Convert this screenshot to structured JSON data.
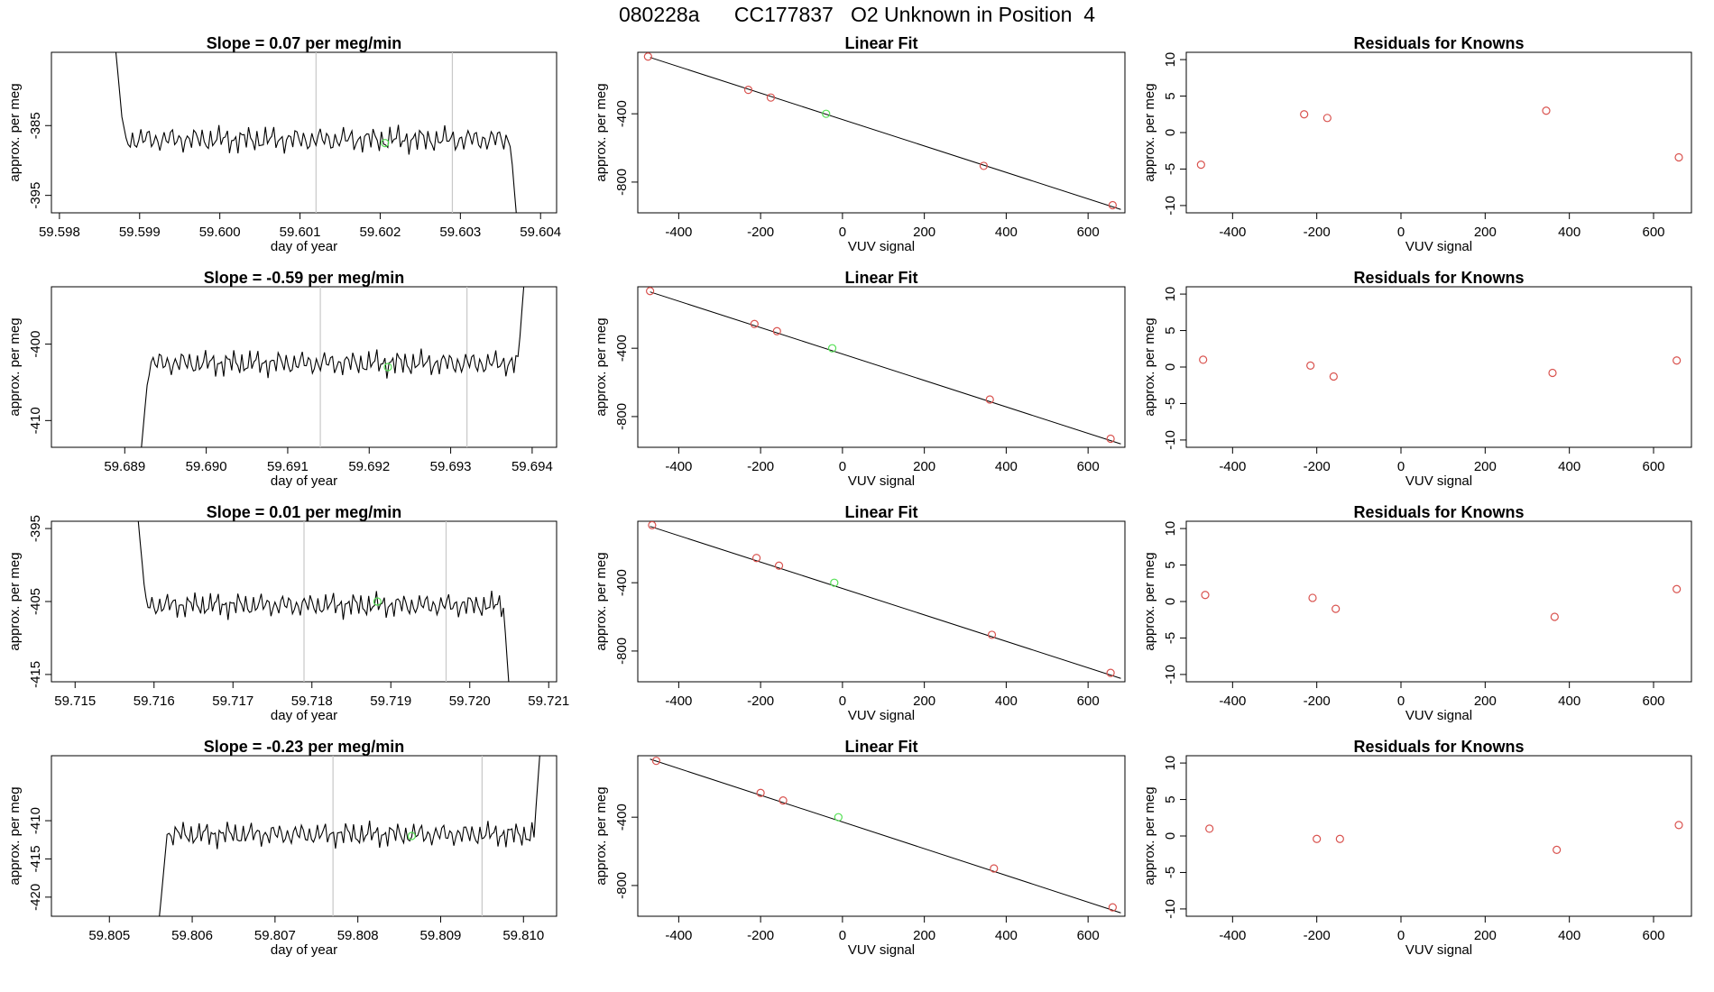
{
  "page": {
    "title": "080228a      CC177837   O2 Unknown in Position  4"
  },
  "colors": {
    "trace": "#000000",
    "known_point": "#d9534f",
    "unknown_point": "#55e055",
    "marker_line": "#c8c8c8",
    "fit_line": "#000000"
  },
  "chart_data": [
    {
      "type": "line",
      "title": "Slope =  0.07  per meg/min",
      "xlabel": "day of year",
      "ylabel": "approx. per meg",
      "xlim": [
        59.5979,
        59.6042
      ],
      "ylim": [
        -397.5,
        -374.5
      ],
      "xticks": [
        59.598,
        59.599,
        59.6,
        59.601,
        59.602,
        59.603,
        59.604
      ],
      "xtick_labels": [
        "59.598",
        "59.599",
        "59.600",
        "59.601",
        "59.602",
        "59.603",
        "59.604"
      ],
      "yticks": [
        -385,
        -395
      ],
      "ytick_labels": [
        "-385",
        "-395"
      ],
      "trace": {
        "x_start": 59.5987,
        "x_end": 59.6037,
        "base": -387.0,
        "amp": 2.0,
        "start_value": -374.0,
        "end_value": -398.0
      },
      "markers_x": [
        59.6012,
        59.6029
      ],
      "unknown_point": {
        "x": 59.60206,
        "y": -387.5
      }
    },
    {
      "type": "scatter",
      "title": "Linear Fit",
      "xlabel": "VUV signal",
      "ylabel": "approx. per meg",
      "xlim": [
        -500,
        690
      ],
      "ylim": [
        -980,
        -40
      ],
      "xticks": [
        -400,
        -200,
        0,
        200,
        400,
        600
      ],
      "xtick_labels": [
        "-400",
        "-200",
        "0",
        "200",
        "400",
        "600"
      ],
      "yticks": [
        -400,
        -800
      ],
      "ytick_labels": [
        "-400",
        "-800"
      ],
      "fit": {
        "x": [
          -470,
          680
        ],
        "y": [
          -70,
          -960
        ]
      },
      "known_points": [
        {
          "x": -475,
          "y": -65
        },
        {
          "x": -230,
          "y": -260
        },
        {
          "x": -175,
          "y": -305
        },
        {
          "x": 345,
          "y": -705
        },
        {
          "x": 660,
          "y": -935
        }
      ],
      "unknown_point": {
        "x": -40,
        "y": -400
      }
    },
    {
      "type": "scatter",
      "title": "Residuals for Knowns",
      "xlabel": "VUV signal",
      "ylabel": "approx. per meg",
      "xlim": [
        -510,
        690
      ],
      "ylim": [
        -11,
        11
      ],
      "xticks": [
        -400,
        -200,
        0,
        200,
        400,
        600
      ],
      "xtick_labels": [
        "-400",
        "-200",
        "0",
        "200",
        "400",
        "600"
      ],
      "yticks": [
        10,
        5,
        0,
        -5,
        -10
      ],
      "ytick_labels": [
        "10",
        "5",
        "0",
        "-5",
        "-10"
      ],
      "known_points": [
        {
          "x": -475,
          "y": -4.4
        },
        {
          "x": -230,
          "y": 2.5
        },
        {
          "x": -175,
          "y": 2.0
        },
        {
          "x": 345,
          "y": 3.0
        },
        {
          "x": 660,
          "y": -3.4
        }
      ]
    },
    {
      "type": "line",
      "title": "Slope =  -0.59  per meg/min",
      "xlabel": "day of year",
      "ylabel": "approx. per meg",
      "xlim": [
        59.6881,
        59.6943
      ],
      "ylim": [
        -413.5,
        -392.5
      ],
      "xticks": [
        59.689,
        59.69,
        59.691,
        59.692,
        59.693,
        59.694
      ],
      "xtick_labels": [
        "59.689",
        "59.690",
        "59.691",
        "59.692",
        "59.693",
        "59.694"
      ],
      "yticks": [
        -400,
        -410
      ],
      "ytick_labels": [
        "-400",
        "-410"
      ],
      "trace": {
        "x_start": 59.6892,
        "x_end": 59.6939,
        "base": -402.5,
        "amp": 1.8,
        "start_value": -414.0,
        "end_value": -392.0
      },
      "markers_x": [
        59.6914,
        59.6932
      ],
      "unknown_point": {
        "x": 59.69223,
        "y": -403.0
      }
    },
    {
      "type": "scatter",
      "title": "Linear Fit",
      "xlabel": "VUV signal",
      "ylabel": "approx. per meg",
      "xlim": [
        -500,
        690
      ],
      "ylim": [
        -980,
        -40
      ],
      "xticks": [
        -400,
        -200,
        0,
        200,
        400,
        600
      ],
      "xtick_labels": [
        "-400",
        "-200",
        "0",
        "200",
        "400",
        "600"
      ],
      "yticks": [
        -400,
        -800
      ],
      "ytick_labels": [
        "-400",
        "-800"
      ],
      "fit": {
        "x": [
          -470,
          680
        ],
        "y": [
          -70,
          -960
        ]
      },
      "known_points": [
        {
          "x": -470,
          "y": -65
        },
        {
          "x": -215,
          "y": -258
        },
        {
          "x": -160,
          "y": -300
        },
        {
          "x": 360,
          "y": -700
        },
        {
          "x": 655,
          "y": -930
        }
      ],
      "unknown_point": {
        "x": -25,
        "y": -400
      }
    },
    {
      "type": "scatter",
      "title": "Residuals for Knowns",
      "xlabel": "VUV signal",
      "ylabel": "approx. per meg",
      "xlim": [
        -510,
        690
      ],
      "ylim": [
        -11,
        11
      ],
      "xticks": [
        -400,
        -200,
        0,
        200,
        400,
        600
      ],
      "xtick_labels": [
        "-400",
        "-200",
        "0",
        "200",
        "400",
        "600"
      ],
      "yticks": [
        10,
        5,
        0,
        -5,
        -10
      ],
      "ytick_labels": [
        "10",
        "5",
        "0",
        "-5",
        "-10"
      ],
      "known_points": [
        {
          "x": -470,
          "y": 1.0
        },
        {
          "x": -215,
          "y": 0.2
        },
        {
          "x": -160,
          "y": -1.3
        },
        {
          "x": 360,
          "y": -0.8
        },
        {
          "x": 655,
          "y": 0.9
        }
      ]
    },
    {
      "type": "line",
      "title": "Slope =  0.01  per meg/min",
      "xlabel": "day of year",
      "ylabel": "approx. per meg",
      "xlim": [
        59.7147,
        59.7211
      ],
      "ylim": [
        -416,
        -394
      ],
      "xticks": [
        59.715,
        59.716,
        59.717,
        59.718,
        59.719,
        59.72,
        59.721
      ],
      "xtick_labels": [
        "59.715",
        "59.716",
        "59.717",
        "59.718",
        "59.719",
        "59.720",
        "59.721"
      ],
      "yticks": [
        -395,
        -405,
        -415
      ],
      "ytick_labels": [
        "-395",
        "-405",
        "-415"
      ],
      "trace": {
        "x_start": 59.7158,
        "x_end": 59.7205,
        "base": -405.5,
        "amp": 1.8,
        "start_value": -394.0,
        "end_value": -417.0
      },
      "markers_x": [
        59.7179,
        59.7197
      ],
      "unknown_point": {
        "x": 59.71883,
        "y": -405.0
      }
    },
    {
      "type": "scatter",
      "title": "Linear Fit",
      "xlabel": "VUV signal",
      "ylabel": "approx. per meg",
      "xlim": [
        -500,
        690
      ],
      "ylim": [
        -980,
        -40
      ],
      "xticks": [
        -400,
        -200,
        0,
        200,
        400,
        600
      ],
      "xtick_labels": [
        "-400",
        "-200",
        "0",
        "200",
        "400",
        "600"
      ],
      "yticks": [
        -400,
        -800
      ],
      "ytick_labels": [
        "-400",
        "-800"
      ],
      "fit": {
        "x": [
          -470,
          680
        ],
        "y": [
          -70,
          -960
        ]
      },
      "known_points": [
        {
          "x": -465,
          "y": -63
        },
        {
          "x": -210,
          "y": -255
        },
        {
          "x": -155,
          "y": -300
        },
        {
          "x": 365,
          "y": -705
        },
        {
          "x": 655,
          "y": -928
        }
      ],
      "unknown_point": {
        "x": -20,
        "y": -400
      }
    },
    {
      "type": "scatter",
      "title": "Residuals for Knowns",
      "xlabel": "VUV signal",
      "ylabel": "approx. per meg",
      "xlim": [
        -510,
        690
      ],
      "ylim": [
        -11,
        11
      ],
      "xticks": [
        -400,
        -200,
        0,
        200,
        400,
        600
      ],
      "xtick_labels": [
        "-400",
        "-200",
        "0",
        "200",
        "400",
        "600"
      ],
      "yticks": [
        10,
        5,
        0,
        -5,
        -10
      ],
      "ytick_labels": [
        "10",
        "5",
        "0",
        "-5",
        "-10"
      ],
      "known_points": [
        {
          "x": -465,
          "y": 0.9
        },
        {
          "x": -210,
          "y": 0.5
        },
        {
          "x": -155,
          "y": -1.0
        },
        {
          "x": 365,
          "y": -2.1
        },
        {
          "x": 655,
          "y": 1.7
        }
      ]
    },
    {
      "type": "line",
      "title": "Slope =  -0.23  per meg/min",
      "xlabel": "day of year",
      "ylabel": "approx. per meg",
      "xlim": [
        59.8043,
        59.8104
      ],
      "ylim": [
        -422.5,
        -401.5
      ],
      "xticks": [
        59.805,
        59.806,
        59.807,
        59.808,
        59.809,
        59.81
      ],
      "xtick_labels": [
        "59.805",
        "59.806",
        "59.807",
        "59.808",
        "59.809",
        "59.810"
      ],
      "yticks": [
        -410,
        -415,
        -420
      ],
      "ytick_labels": [
        "-410",
        "-415",
        "-420"
      ],
      "trace": {
        "x_start": 59.8056,
        "x_end": 59.8102,
        "base": -411.8,
        "amp": 1.7,
        "start_value": -423.0,
        "end_value": -401.0
      },
      "markers_x": [
        59.8077,
        59.8095
      ],
      "unknown_point": {
        "x": 59.80865,
        "y": -412.0
      }
    },
    {
      "type": "scatter",
      "title": "Linear Fit",
      "xlabel": "VUV signal",
      "ylabel": "approx. per meg",
      "xlim": [
        -500,
        690
      ],
      "ylim": [
        -980,
        -40
      ],
      "xticks": [
        -400,
        -200,
        0,
        200,
        400,
        600
      ],
      "xtick_labels": [
        "-400",
        "-200",
        "0",
        "200",
        "400",
        "600"
      ],
      "yticks": [
        -400,
        -800
      ],
      "ytick_labels": [
        "-400",
        "-800"
      ],
      "fit": {
        "x": [
          -470,
          680
        ],
        "y": [
          -60,
          -960
        ]
      },
      "known_points": [
        {
          "x": -455,
          "y": -70
        },
        {
          "x": -200,
          "y": -258
        },
        {
          "x": -145,
          "y": -302
        },
        {
          "x": 370,
          "y": -700
        },
        {
          "x": 660,
          "y": -928
        }
      ],
      "unknown_point": {
        "x": -10,
        "y": -400
      }
    },
    {
      "type": "scatter",
      "title": "Residuals for Knowns",
      "xlabel": "VUV signal",
      "ylabel": "approx. per meg",
      "xlim": [
        -510,
        690
      ],
      "ylim": [
        -11,
        11
      ],
      "xticks": [
        -400,
        -200,
        0,
        200,
        400,
        600
      ],
      "xtick_labels": [
        "-400",
        "-200",
        "0",
        "200",
        "400",
        "600"
      ],
      "yticks": [
        10,
        5,
        0,
        -5,
        -10
      ],
      "ytick_labels": [
        "10",
        "5",
        "0",
        "-5",
        "-10"
      ],
      "known_points": [
        {
          "x": -455,
          "y": 1.0
        },
        {
          "x": -200,
          "y": -0.4
        },
        {
          "x": -145,
          "y": -0.4
        },
        {
          "x": 370,
          "y": -1.9
        },
        {
          "x": 660,
          "y": 1.5
        }
      ]
    }
  ]
}
